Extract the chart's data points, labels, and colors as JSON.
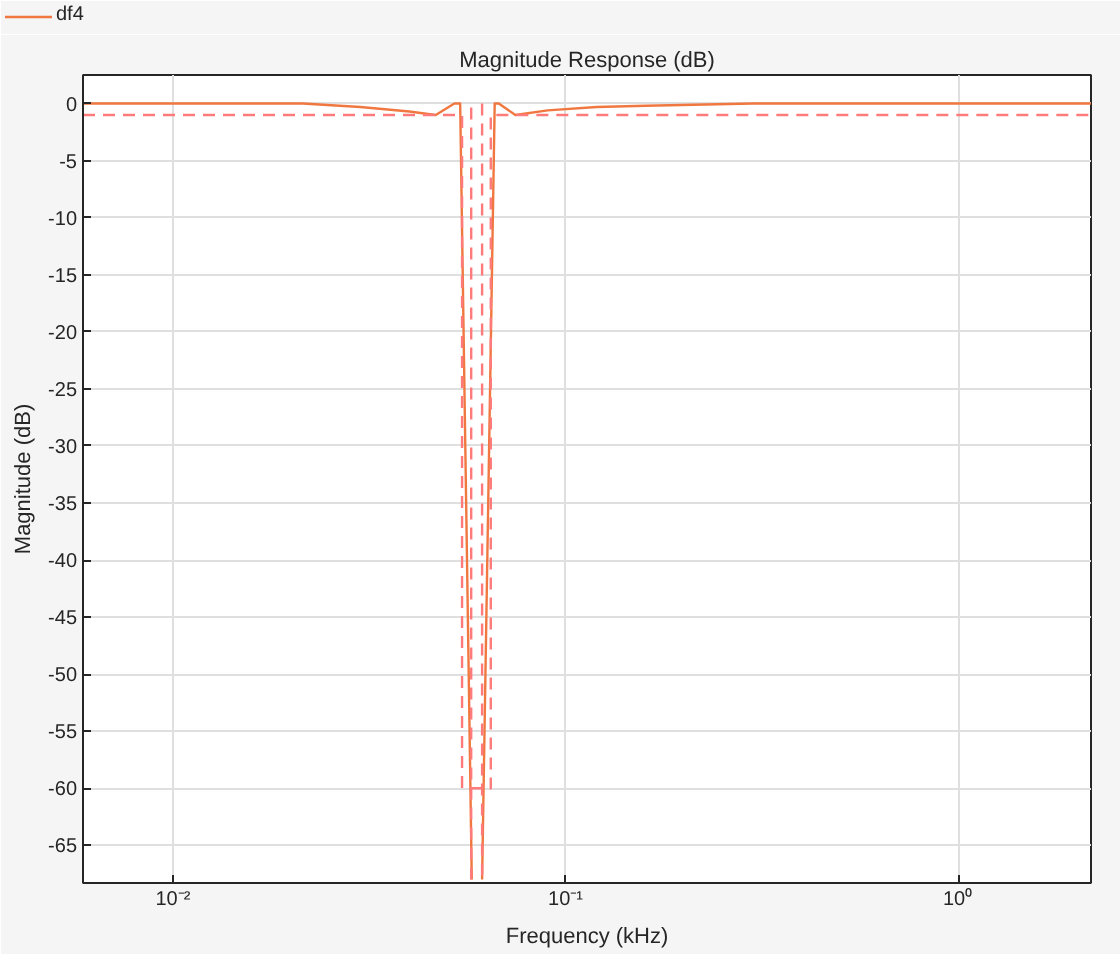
{
  "chart_data": {
    "type": "line",
    "title": "Magnitude Response (dB)",
    "xlabel": "Frequency (kHz)",
    "ylabel": "Magnitude (dB)",
    "log": "x",
    "xlim": [
      0.0059,
      2.18
    ],
    "ylim": [
      -68.3,
      2.5
    ],
    "xticks": [
      {
        "value": 0.01,
        "label": "10⁻²"
      },
      {
        "value": 0.1,
        "label": "10⁻¹"
      },
      {
        "value": 1,
        "label": "10⁰"
      }
    ],
    "yticks": [
      0,
      -5,
      -10,
      -15,
      -20,
      -25,
      -30,
      -35,
      -40,
      -45,
      -50,
      -55,
      -60,
      -65
    ],
    "grid": true,
    "legend": "top left",
    "series": [
      {
        "name": "df4",
        "color": "#f07840",
        "line_style": "solid",
        "x": [
          0.0059,
          0.0214,
          0.03,
          0.04,
          0.0467,
          0.0521,
          0.0539,
          0.0577,
          0.0595,
          0.0613,
          0.066,
          0.0676,
          0.0745,
          0.09,
          0.12,
          0.16,
          0.3,
          2.18
        ],
        "values": [
          0,
          0,
          -0.3,
          -0.7,
          -1.0,
          0,
          0,
          -68,
          null,
          -68,
          0,
          0,
          -1.0,
          -0.6,
          -0.3,
          -0.2,
          0,
          0
        ]
      },
      {
        "color": "#ff7b7b",
        "line_style": "dashed",
        "x": [
          0.0059,
          0.0545,
          0.0545,
          0.0645,
          0.0645,
          2.18
        ],
        "values": [
          -1,
          -1,
          -60,
          -60,
          -1,
          -1
        ]
      },
      {
        "color": "#ff7b7b",
        "line_style": "dashed",
        "x": [
          0.0575,
          0.0575,
          0.0595,
          0.0613,
          0.0613
        ],
        "values": [
          -68,
          0,
          null,
          0,
          -68
        ]
      }
    ]
  }
}
